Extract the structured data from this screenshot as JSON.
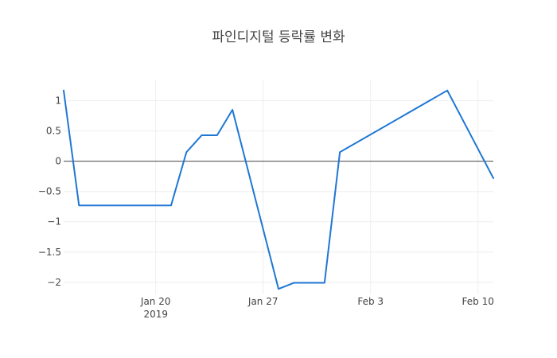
{
  "chart_data": {
    "type": "line",
    "title": "파인디지털 등락률 변화",
    "xlabel": "",
    "ylabel": "",
    "x_ticks": [
      {
        "date": "2019-01-20",
        "label": "Jan 20",
        "sublabel": "2019"
      },
      {
        "date": "2019-01-27",
        "label": "Jan 27",
        "sublabel": ""
      },
      {
        "date": "2019-02-03",
        "label": "Feb 3",
        "sublabel": ""
      },
      {
        "date": "2019-02-10",
        "label": "Feb 10",
        "sublabel": ""
      }
    ],
    "y_ticks": [
      1,
      0.5,
      0,
      -0.5,
      -1,
      -1.5,
      -2
    ],
    "y_tick_labels": [
      "1",
      "0.5",
      "0",
      "−0.5",
      "−1",
      "−1.5",
      "−2"
    ],
    "xlim": [
      "2019-01-14",
      "2019-02-11"
    ],
    "ylim": [
      -2.2,
      1.35
    ],
    "grid": true,
    "series": [
      {
        "color": "#1f77d4",
        "x": [
          "2019-01-14",
          "2019-01-15",
          "2019-01-21",
          "2019-01-22",
          "2019-01-23",
          "2019-01-24",
          "2019-01-25",
          "2019-01-28",
          "2019-01-29",
          "2019-01-31",
          "2019-02-01",
          "2019-02-08",
          "2019-02-11"
        ],
        "y": [
          1.17,
          -0.73,
          -0.73,
          0.15,
          0.43,
          0.43,
          0.85,
          -2.11,
          -2.01,
          -2.01,
          0.15,
          1.17,
          -0.28
        ]
      }
    ]
  }
}
